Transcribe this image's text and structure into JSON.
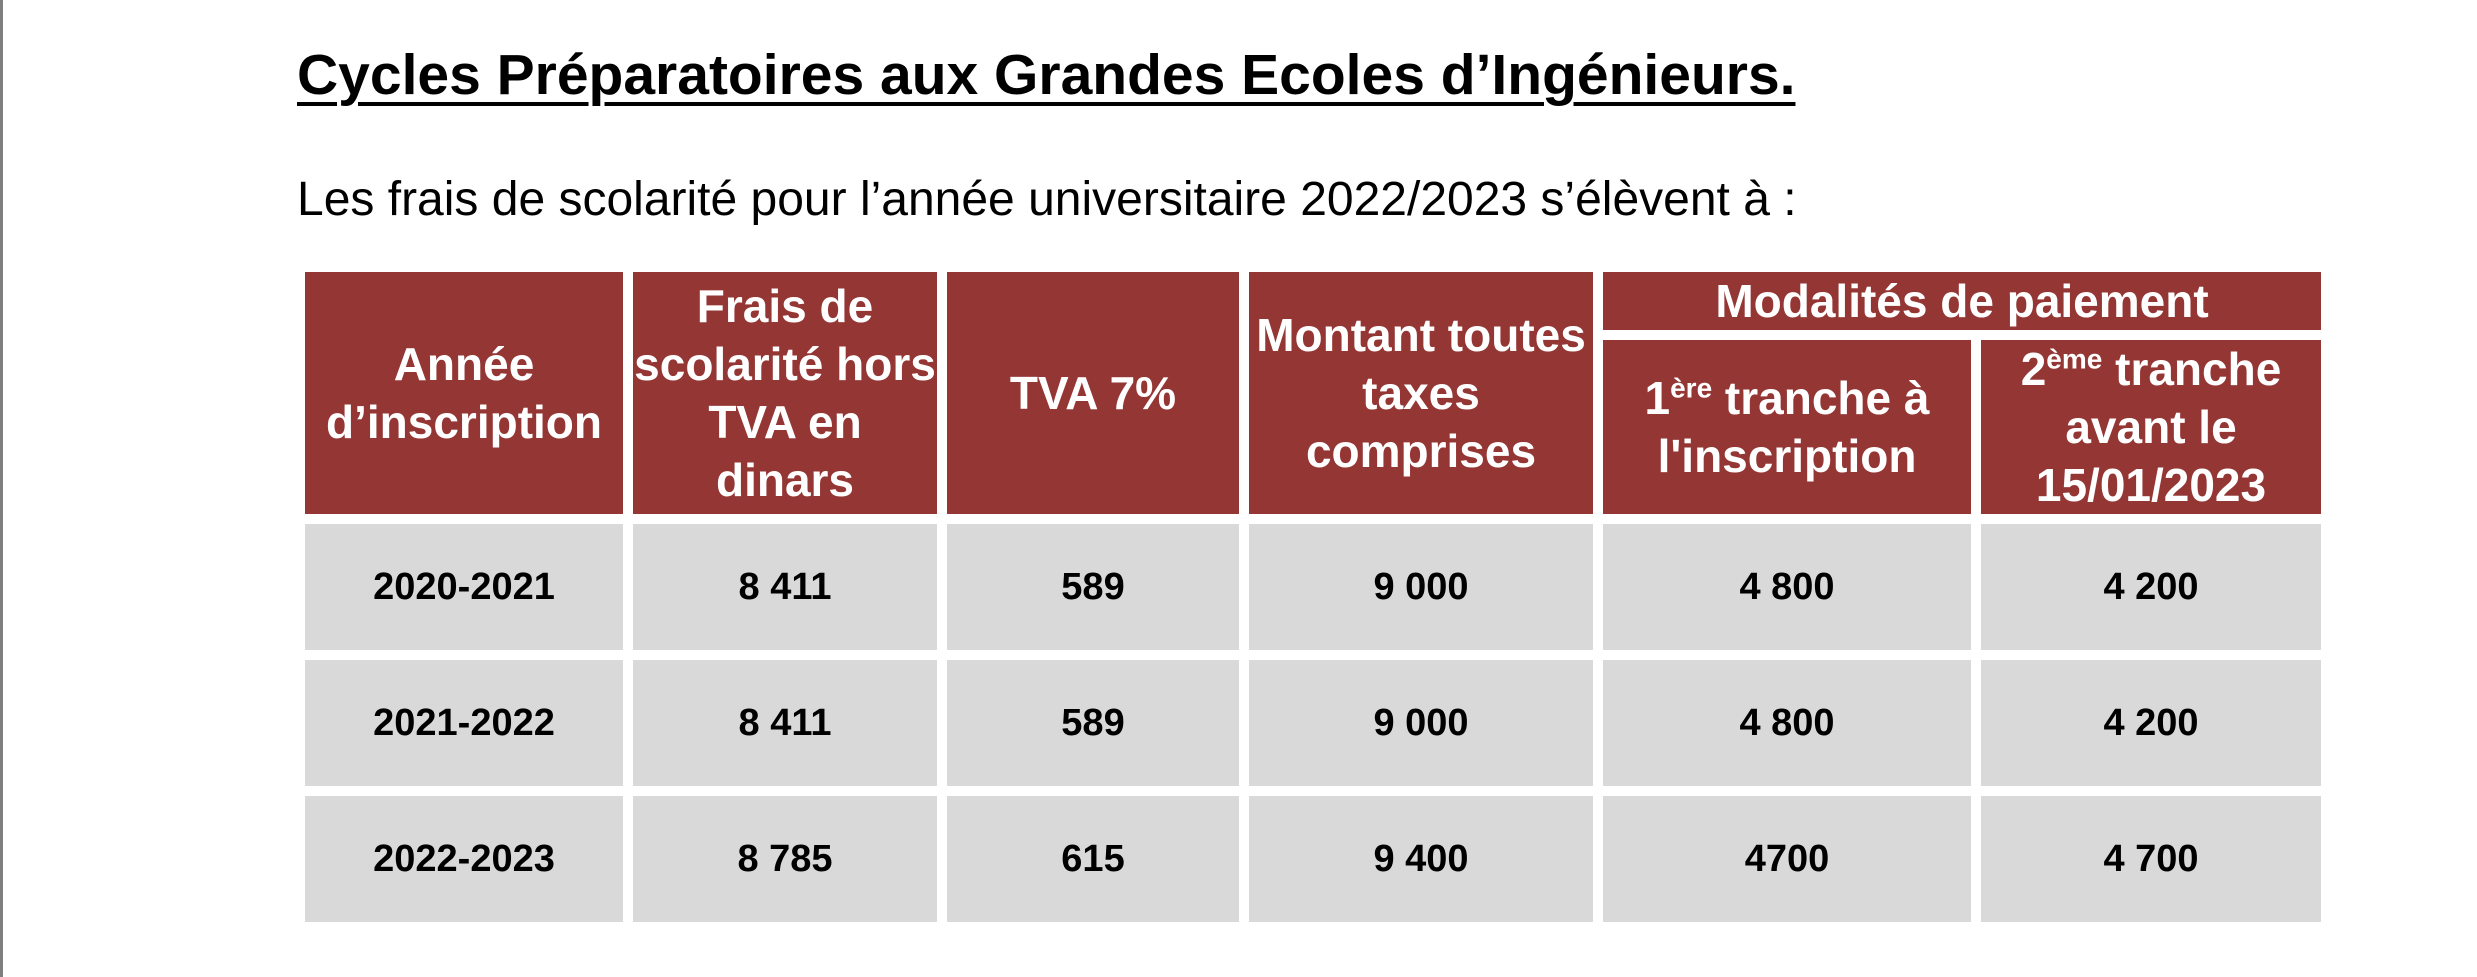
{
  "document": {
    "title": "Cycles Préparatoires aux Grandes Ecoles d’Ingénieurs.",
    "intro": "Les frais de scolarité pour l’année universitaire 2022/2023 s’élèvent à :"
  },
  "table": {
    "headers": {
      "year": "Année d’inscription",
      "fees_excl_vat": "Frais de scolarité hors TVA en dinars",
      "vat": "TVA 7%",
      "total": "Montant toutes taxes comprises",
      "payment_group": "Modalités de paiement",
      "tranche1_num": "1",
      "tranche1_sup": "ère",
      "tranche1_rest": " tranche à l'inscription",
      "tranche2_num": "2",
      "tranche2_sup": "ème",
      "tranche2_rest": " tranche avant le 15/01/2023"
    },
    "rows": [
      {
        "year": "2020-2021",
        "fees": "8 411",
        "vat": "589",
        "total": "9 000",
        "tranche1": "4 800",
        "tranche2": "4 200"
      },
      {
        "year": "2021-2022",
        "fees": "8 411",
        "vat": "589",
        "total": "9 000",
        "tranche1": "4 800",
        "tranche2": "4 200"
      },
      {
        "year": "2022-2023",
        "fees": "8 785",
        "vat": "615",
        "total": "9 400",
        "tranche1": "4700",
        "tranche2": "4 700"
      }
    ]
  },
  "colors": {
    "header_bg": "#943634",
    "cell_bg": "#d9d9d9"
  }
}
